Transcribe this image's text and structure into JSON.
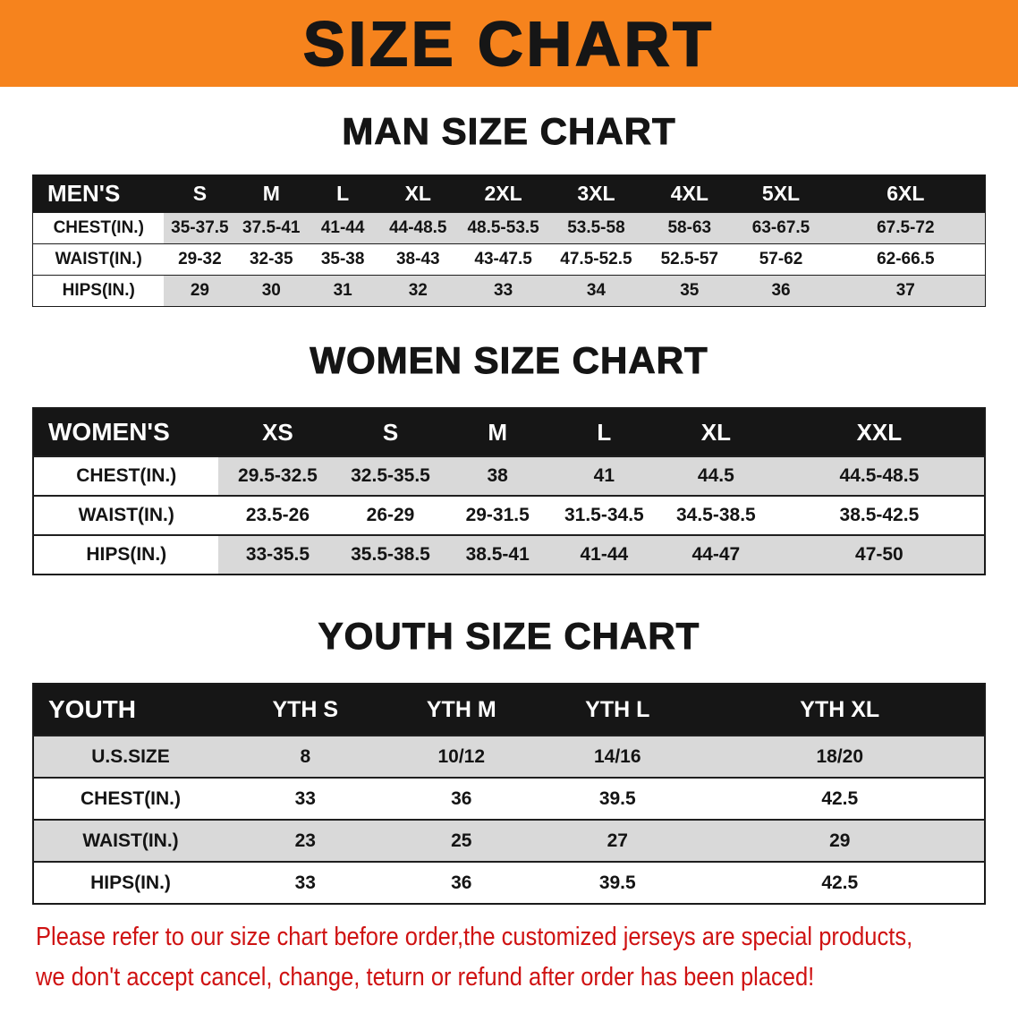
{
  "banner": {
    "title": "SIZE CHART",
    "bg_color": "#f6831d",
    "text_color": "#161616"
  },
  "sections": [
    {
      "id": "men",
      "heading": "MAN SIZE CHART",
      "table": {
        "header": [
          "MEN'S",
          "S",
          "M",
          "L",
          "XL",
          "2XL",
          "3XL",
          "4XL",
          "5XL",
          "6XL"
        ],
        "rows": [
          [
            "CHEST(IN.)",
            "35-37.5",
            "37.5-41",
            "41-44",
            "44-48.5",
            "48.5-53.5",
            "53.5-58",
            "58-63",
            "63-67.5",
            "67.5-72"
          ],
          [
            "WAIST(IN.)",
            "29-32",
            "32-35",
            "35-38",
            "38-43",
            "43-47.5",
            "47.5-52.5",
            "52.5-57",
            "57-62",
            "62-66.5"
          ],
          [
            "HIPS(IN.)",
            "29",
            "30",
            "31",
            "32",
            "33",
            "34",
            "35",
            "36",
            "37"
          ]
        ]
      }
    },
    {
      "id": "women",
      "heading": "WOMEN SIZE CHART",
      "table": {
        "header": [
          "WOMEN'S",
          "XS",
          "S",
          "M",
          "L",
          "XL",
          "XXL"
        ],
        "rows": [
          [
            "CHEST(IN.)",
            "29.5-32.5",
            "32.5-35.5",
            "38",
            "41",
            "44.5",
            "44.5-48.5"
          ],
          [
            "WAIST(IN.)",
            "23.5-26",
            "26-29",
            "29-31.5",
            "31.5-34.5",
            "34.5-38.5",
            "38.5-42.5"
          ],
          [
            "HIPS(IN.)",
            "33-35.5",
            "35.5-38.5",
            "38.5-41",
            "41-44",
            "44-47",
            "47-50"
          ]
        ]
      }
    },
    {
      "id": "youth",
      "heading": "YOUTH SIZE CHART",
      "table": {
        "header": [
          "YOUTH",
          "YTH S",
          "YTH M",
          "YTH L",
          "YTH XL"
        ],
        "rows": [
          [
            "U.S.SIZE",
            "8",
            "10/12",
            "14/16",
            "18/20"
          ],
          [
            "CHEST(IN.)",
            "33",
            "36",
            "39.5",
            "42.5"
          ],
          [
            "WAIST(IN.)",
            "23",
            "25",
            "27",
            "29"
          ],
          [
            "HIPS(IN.)",
            "33",
            "36",
            "39.5",
            "42.5"
          ]
        ]
      }
    }
  ],
  "disclaimer": {
    "line1": "Please refer to our size chart before order,the customized jerseys are special products,",
    "line2": "we don't accept cancel, change, teturn or refund after order has been placed!",
    "text_color": "#cf1212"
  },
  "colors": {
    "stripe_gray": "#d9d9d9",
    "table_header_bg": "#161616",
    "table_header_text": "#ffffff"
  }
}
